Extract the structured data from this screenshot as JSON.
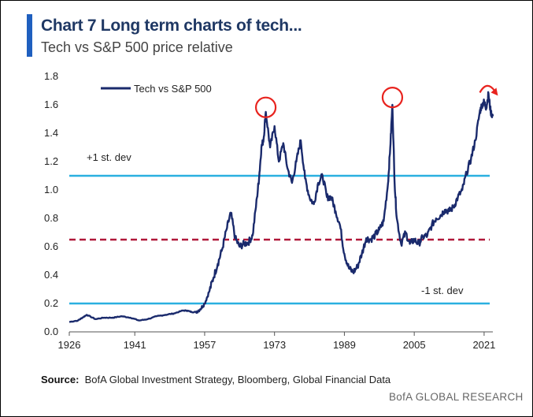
{
  "header": {
    "title": "Chart 7 Long term charts of tech...",
    "subtitle": "Tech vs S&P 500 price relative"
  },
  "footer": {
    "source_label": "Source:",
    "source_text": "BofA Global Investment Strategy, Bloomberg, Global Financial Data",
    "brand": "BofA GLOBAL RESEARCH"
  },
  "colors": {
    "series": "#1a2a6c",
    "std_dev_lines": "#2ab0e0",
    "mean_line": "#b0183a",
    "highlight": "#e8231e",
    "accent": "#1f5fbf"
  },
  "chart_data": {
    "type": "line",
    "title": "",
    "xlabel": "",
    "ylabel": "",
    "xlim": [
      1926,
      2023
    ],
    "ylim": [
      0,
      1.8
    ],
    "x_ticks": [
      "1926",
      "1941",
      "1957",
      "1973",
      "1989",
      "2005",
      "2021"
    ],
    "y_ticks": [
      "0.0",
      "0.2",
      "0.4",
      "0.6",
      "0.8",
      "1.0",
      "1.2",
      "1.4",
      "1.6",
      "1.8"
    ],
    "grid": false,
    "legend": {
      "position": "top-left",
      "entries": [
        "Tech vs  S&P 500"
      ]
    },
    "series": [
      {
        "name": "Tech vs  S&P 500",
        "x": [
          1926,
          1928,
          1929,
          1930,
          1932,
          1934,
          1936,
          1938,
          1940,
          1942,
          1944,
          1946,
          1948,
          1950,
          1952,
          1953,
          1954,
          1955,
          1956,
          1957,
          1958,
          1959,
          1960,
          1961,
          1962,
          1963,
          1964,
          1965,
          1966,
          1967,
          1968,
          1969,
          1969.5,
          1970,
          1970.5,
          1971,
          1972,
          1973,
          1974,
          1975,
          1976,
          1977,
          1978,
          1979,
          1980,
          1981,
          1982,
          1983,
          1984,
          1985,
          1986,
          1987,
          1988,
          1989,
          1990,
          1991,
          1992,
          1993,
          1994,
          1995,
          1996,
          1997,
          1998,
          1999,
          1999.5,
          2000,
          2000.5,
          2001,
          2002,
          2003,
          2004,
          2005,
          2006,
          2007,
          2008,
          2009,
          2010,
          2011,
          2012,
          2013,
          2014,
          2015,
          2016,
          2017,
          2018,
          2019,
          2020,
          2020.5,
          2021,
          2021.5,
          2022,
          2022.5,
          2023
        ],
        "y": [
          0.07,
          0.08,
          0.1,
          0.12,
          0.09,
          0.1,
          0.1,
          0.11,
          0.1,
          0.08,
          0.09,
          0.11,
          0.12,
          0.13,
          0.15,
          0.15,
          0.14,
          0.14,
          0.16,
          0.2,
          0.28,
          0.38,
          0.48,
          0.58,
          0.72,
          0.84,
          0.66,
          0.6,
          0.62,
          0.63,
          0.68,
          0.95,
          1.1,
          1.3,
          1.36,
          1.55,
          1.3,
          1.45,
          1.2,
          1.33,
          1.15,
          1.05,
          1.2,
          1.35,
          1.08,
          0.95,
          0.9,
          1.05,
          1.1,
          0.95,
          0.95,
          0.85,
          0.75,
          0.55,
          0.45,
          0.42,
          0.46,
          0.55,
          0.66,
          0.65,
          0.68,
          0.72,
          0.78,
          1.05,
          1.3,
          1.6,
          1.05,
          0.8,
          0.62,
          0.7,
          0.62,
          0.65,
          0.62,
          0.67,
          0.68,
          0.75,
          0.8,
          0.82,
          0.86,
          0.85,
          0.88,
          0.95,
          1.0,
          1.12,
          1.22,
          1.35,
          1.55,
          1.6,
          1.62,
          1.58,
          1.68,
          1.55,
          1.52
        ]
      }
    ],
    "reference_lines": [
      {
        "name": "+1 st. dev",
        "label": "+1 st. dev",
        "y": 1.1,
        "style": "solid"
      },
      {
        "name": "mean",
        "y": 0.65,
        "style": "dashed"
      },
      {
        "name": "-1 st. dev",
        "label": "-1 st. dev",
        "y": 0.2,
        "style": "solid"
      }
    ],
    "highlights": [
      {
        "shape": "circle",
        "x": 1971,
        "y": 1.56
      },
      {
        "shape": "circle",
        "x": 2000,
        "y": 1.63
      },
      {
        "shape": "arrow",
        "x": 2022,
        "y": 1.72
      }
    ]
  }
}
